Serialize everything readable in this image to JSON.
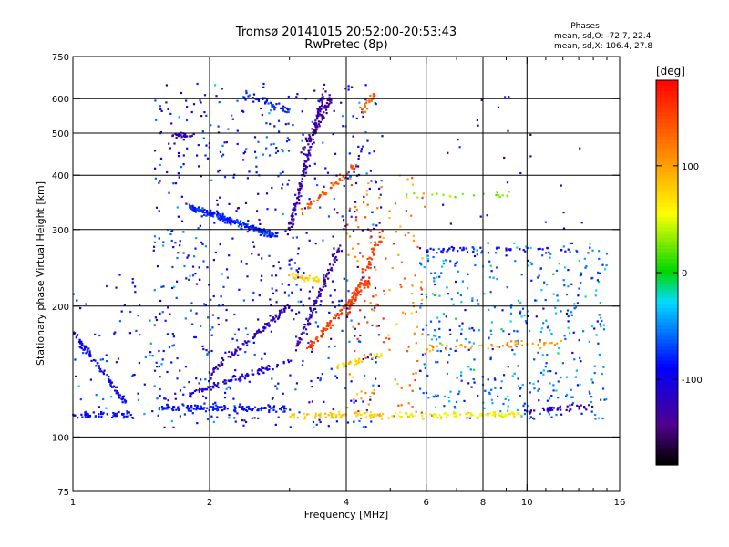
{
  "chart_data": {
    "type": "scatter",
    "title": "Tromsø 20141015 20:52:00-20:53:43",
    "subtitle": "RwPretec (8p)",
    "xlabel": "Frequency [MHz]",
    "ylabel": "Stationary phase Virtual Height [km]",
    "x_scale": "log",
    "y_scale": "log",
    "xlim": [
      1,
      16
    ],
    "ylim": [
      75,
      750
    ],
    "x_ticks": [
      1,
      2,
      4,
      6,
      8,
      10,
      16
    ],
    "x_tick_labels": [
      "1",
      "2",
      "4",
      "6",
      "8",
      "10",
      "16"
    ],
    "x_grid": [
      2,
      4,
      6,
      8,
      10
    ],
    "x_minor": [
      3,
      5,
      7,
      9,
      11,
      12,
      13,
      14,
      15
    ],
    "y_ticks": [
      75,
      100,
      200,
      300,
      400,
      500,
      600,
      750
    ],
    "y_tick_labels": [
      "75",
      "100",
      "200",
      "300",
      "400",
      "500",
      "600",
      "750"
    ],
    "y_grid": [
      100,
      200,
      300,
      400,
      500,
      600
    ],
    "grid": true,
    "phases_box": {
      "title": "Phases",
      "line_o": "mean, sd,O: -72.7, 22.4",
      "line_x": "mean, sd,X: 106.4, 27.8"
    },
    "colorbar": {
      "label": "[deg]",
      "range": [
        -180,
        180
      ],
      "ticks": [
        100,
        0,
        -100
      ],
      "tick_labels": [
        "100",
        "0",
        "-100"
      ]
    },
    "point_color": "phase",
    "traces": [
      {
        "x": [
          1.0,
          1.35
        ],
        "y": [
          112,
          113
        ],
        "phase": -90,
        "n": 60
      },
      {
        "x": [
          1.0,
          1.3
        ],
        "y": [
          175,
          120
        ],
        "phase": -95,
        "n": 90
      },
      {
        "x": [
          1.55,
          3.0
        ],
        "y": [
          117,
          116
        ],
        "phase": -85,
        "n": 140
      },
      {
        "x": [
          1.8,
          3.0
        ],
        "y": [
          125,
          150
        ],
        "phase": -110,
        "n": 90
      },
      {
        "x": [
          2.0,
          3.0
        ],
        "y": [
          140,
          200
        ],
        "phase": -120,
        "n": 90
      },
      {
        "x": [
          1.8,
          2.8
        ],
        "y": [
          340,
          290
        ],
        "phase": -80,
        "n": 220
      },
      {
        "x": [
          1.65,
          1.85
        ],
        "y": [
          495,
          495
        ],
        "phase": -120,
        "n": 25
      },
      {
        "x": [
          2.4,
          3.0
        ],
        "y": [
          620,
          560
        ],
        "phase": -80,
        "n": 40
      },
      {
        "x": [
          3.0,
          3.6
        ],
        "y": [
          300,
          640
        ],
        "phase": -130,
        "n": 140
      },
      {
        "x": [
          3.2,
          3.7
        ],
        "y": [
          450,
          600
        ],
        "phase": -140,
        "n": 60
      },
      {
        "x": [
          3.1,
          3.9
        ],
        "y": [
          160,
          280
        ],
        "phase": -125,
        "n": 90
      },
      {
        "x": [
          3.2,
          4.2
        ],
        "y": [
          330,
          420
        ],
        "phase": 140,
        "n": 50
      },
      {
        "x": [
          3.0,
          3.5
        ],
        "y": [
          235,
          230
        ],
        "phase": 75,
        "n": 35
      },
      {
        "x": [
          3.3,
          4.5
        ],
        "y": [
          160,
          230
        ],
        "phase": 150,
        "n": 110
      },
      {
        "x": [
          4.0,
          4.8
        ],
        "y": [
          190,
          300
        ],
        "phase": 150,
        "n": 70
      },
      {
        "x": [
          4.3,
          4.6
        ],
        "y": [
          560,
          610
        ],
        "phase": 130,
        "n": 25
      },
      {
        "x": [
          3.0,
          4.8
        ],
        "y": [
          112,
          113
        ],
        "phase": 80,
        "n": 70
      },
      {
        "x": [
          3.8,
          4.8
        ],
        "y": [
          145,
          155
        ],
        "phase": 70,
        "n": 35
      },
      {
        "x": [
          4.8,
          10.0
        ],
        "y": [
          112,
          113
        ],
        "phase": 60,
        "n": 90
      },
      {
        "x": [
          10.0,
          14.0
        ],
        "y": [
          115,
          118
        ],
        "phase": -120,
        "n": 40
      },
      {
        "x": [
          6.0,
          12.5
        ],
        "y": [
          160,
          165
        ],
        "phase": 100,
        "n": 50
      },
      {
        "x": [
          5.8,
          12.5
        ],
        "y": [
          270,
          270
        ],
        "phase": -100,
        "n": 45
      },
      {
        "x": [
          5.0,
          9.5
        ],
        "y": [
          360,
          360
        ],
        "phase": 30,
        "n": 20
      }
    ],
    "scatter_regions": [
      {
        "x": [
          1.5,
          4.8
        ],
        "y": [
          105,
          650
        ],
        "phase": -90,
        "n": 700
      },
      {
        "x": [
          4.0,
          6.0
        ],
        "y": [
          110,
          400
        ],
        "phase": 120,
        "n": 150
      },
      {
        "x": [
          5.8,
          15.0
        ],
        "y": [
          110,
          280
        ],
        "phase": -60,
        "n": 450
      },
      {
        "x": [
          1.0,
          1.6
        ],
        "y": [
          110,
          240
        ],
        "phase": -80,
        "n": 70
      },
      {
        "x": [
          5.5,
          14.0
        ],
        "y": [
          300,
          640
        ],
        "phase": -120,
        "n": 25
      }
    ]
  }
}
